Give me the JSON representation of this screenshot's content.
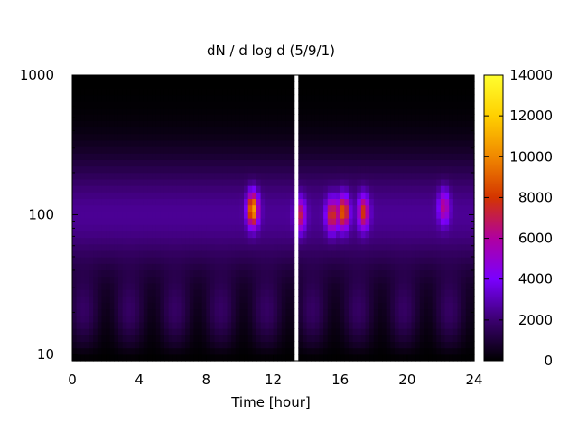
{
  "chart_data": {
    "type": "heatmap",
    "title": "dN / d log d (5/9/1)",
    "xlabel": "Time [hour]",
    "ylabel": "",
    "xlim": [
      0,
      24
    ],
    "ylim": [
      9,
      1000
    ],
    "y_scale": "log",
    "x_ticks": [
      "0",
      "4",
      "8",
      "12",
      "16",
      "20",
      "24"
    ],
    "y_ticks": [
      "10",
      "100",
      "1000"
    ],
    "colorbar": {
      "range": [
        0,
        14000
      ],
      "ticks": [
        "0",
        "2000",
        "4000",
        "6000",
        "8000",
        "10000",
        "12000",
        "14000"
      ],
      "colormap": [
        "#000000",
        "#3b0070",
        "#7a00ff",
        "#b000a0",
        "#d43500",
        "#f08800",
        "#ffd000",
        "#ffff30"
      ]
    },
    "gap": [
      13.2,
      13.6
    ],
    "background": 2500,
    "peaks": [
      {
        "t": 10.8,
        "d": 110,
        "value": 11000
      },
      {
        "t": 13.6,
        "d": 100,
        "value": 7000
      },
      {
        "t": 15.5,
        "d": 100,
        "value": 8000
      },
      {
        "t": 16.2,
        "d": 105,
        "value": 9000
      },
      {
        "t": 17.4,
        "d": 105,
        "value": 8000
      },
      {
        "t": 22.2,
        "d": 115,
        "value": 6500
      }
    ],
    "grid": false
  }
}
